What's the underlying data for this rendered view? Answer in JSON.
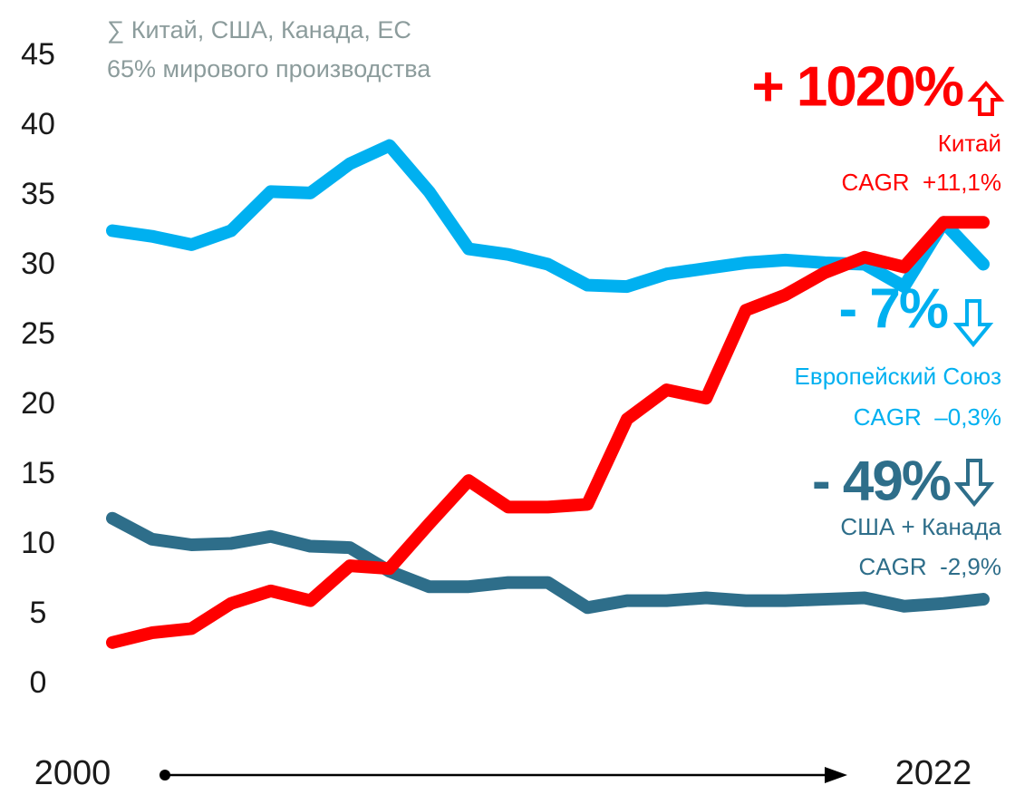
{
  "chart_data": {
    "type": "line",
    "subtitle": [
      "∑ Китай, США, Канада, ЕС",
      "65% мирового производства"
    ],
    "categories": [
      "2000",
      null,
      null,
      null,
      null,
      null,
      null,
      null,
      null,
      null,
      null,
      null,
      null,
      null,
      null,
      null,
      null,
      null,
      null,
      null,
      null,
      null,
      "2022"
    ],
    "series": [
      {
        "name": "США + Канада",
        "color": "#2e6e8a",
        "values": [
          11.9,
          10.4,
          10.0,
          10.1,
          10.6,
          9.9,
          9.8,
          8.1,
          7.0,
          7.0,
          7.3,
          7.3,
          5.5,
          6.0,
          6.0,
          6.2,
          6.0,
          6.0,
          6.1,
          6.2,
          5.6,
          5.8,
          6.1
        ]
      },
      {
        "name": "Европейский Союз",
        "color": "#00b0f0",
        "values": [
          32.5,
          32.1,
          31.5,
          32.5,
          35.3,
          35.2,
          37.3,
          38.6,
          35.3,
          31.2,
          30.8,
          30.1,
          28.6,
          28.5,
          29.4,
          29.8,
          30.2,
          30.4,
          30.2,
          30.1,
          28.5,
          33.1,
          30.1
        ]
      },
      {
        "name": "Китай",
        "color": "#ff0000",
        "values": [
          3.0,
          3.7,
          4.0,
          5.8,
          6.7,
          6.0,
          8.5,
          8.3,
          11.5,
          14.6,
          12.7,
          12.7,
          12.9,
          19.0,
          21.1,
          20.5,
          26.8,
          27.9,
          29.5,
          30.6,
          29.9,
          33.1,
          33.1
        ]
      }
    ],
    "annotations": [
      {
        "text": "+ 1020%",
        "color": "#ff0000"
      },
      {
        "text": "CAGR  +11,1%",
        "color": "#ff0000"
      },
      {
        "text": "- 7%",
        "color": "#00b0f0"
      },
      {
        "text": "CAGR  –0,3%",
        "color": "#00b0f0"
      },
      {
        "text": "- 49%",
        "color": "#2e6e8a"
      },
      {
        "text": "CAGR  -2,9%",
        "color": "#2e6e8a"
      }
    ],
    "ylim": [
      0,
      45
    ],
    "yticks": [
      0,
      5,
      10,
      15,
      20,
      25,
      30,
      35,
      40,
      45
    ],
    "grid": false
  }
}
